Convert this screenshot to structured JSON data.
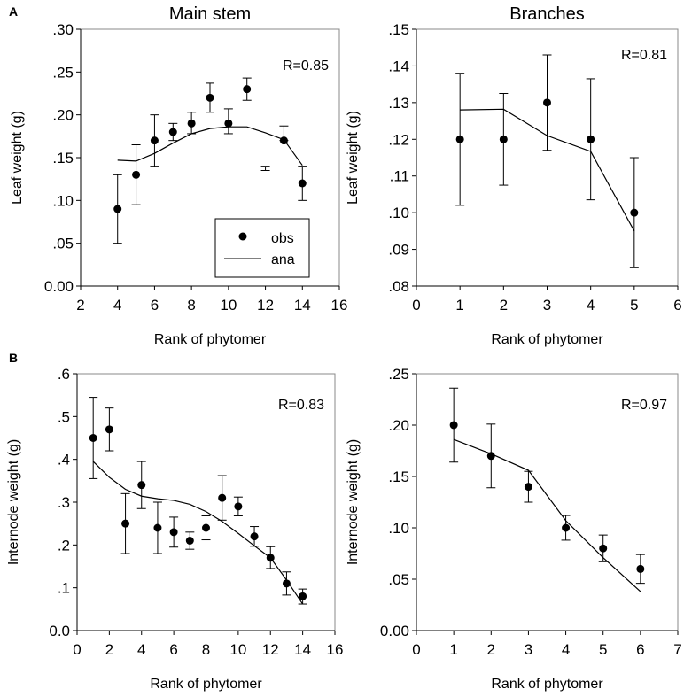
{
  "panel_labels": [
    "A",
    "B"
  ],
  "chart_data": [
    {
      "type": "scatter",
      "title": "Main stem",
      "xlabel": "Rank of phytomer",
      "ylabel": "Leaf weight (g)",
      "annotation": "R=0.85",
      "xlim": [
        2,
        16
      ],
      "ylim": [
        0,
        0.3
      ],
      "xticks": [
        2,
        4,
        6,
        8,
        10,
        12,
        14,
        16
      ],
      "xtick_labels": [
        "2",
        "4",
        "6",
        "8",
        "10",
        "12",
        "14",
        "16"
      ],
      "yticks": [
        0,
        0.05,
        0.1,
        0.15,
        0.2,
        0.25,
        0.3
      ],
      "ytick_labels": [
        "0.00",
        ".05",
        ".10",
        ".15",
        ".20",
        ".25",
        ".30"
      ],
      "legend": {
        "placement": "bottom-right",
        "entries": [
          "obs",
          "ana"
        ]
      },
      "obs": {
        "x": [
          4,
          5,
          6,
          7,
          8,
          9,
          10,
          11,
          12,
          13,
          14
        ],
        "y": [
          0.09,
          0.13,
          0.17,
          0.18,
          0.19,
          0.22,
          0.19,
          0.23,
          null,
          0.17,
          0.12
        ],
        "err_low": [
          0.05,
          0.095,
          0.14,
          0.17,
          0.178,
          0.203,
          0.178,
          0.217,
          0.135,
          0.17,
          0.1
        ],
        "err_high": [
          0.13,
          0.165,
          0.2,
          0.19,
          0.203,
          0.237,
          0.207,
          0.243,
          0.14,
          0.187,
          0.14
        ]
      },
      "ana": {
        "x": [
          4,
          5,
          6,
          7,
          8,
          9,
          10,
          11,
          12,
          13,
          14
        ],
        "y": [
          0.147,
          0.146,
          0.155,
          0.167,
          0.178,
          0.184,
          0.186,
          0.186,
          0.179,
          0.171,
          0.141
        ]
      }
    },
    {
      "type": "scatter",
      "title": "Branches",
      "xlabel": "Rank of phytomer",
      "ylabel": "Leaf weight (g)",
      "annotation": "R=0.81",
      "xlim": [
        0,
        6
      ],
      "ylim": [
        0.08,
        0.15
      ],
      "xticks": [
        0,
        1,
        2,
        3,
        4,
        5,
        6
      ],
      "xtick_labels": [
        "0",
        "1",
        "2",
        "3",
        "4",
        "5",
        "6"
      ],
      "yticks": [
        0.08,
        0.09,
        0.1,
        0.11,
        0.12,
        0.13,
        0.14,
        0.15
      ],
      "ytick_labels": [
        ".08",
        ".09",
        ".10",
        ".11",
        ".12",
        ".13",
        ".14",
        ".15"
      ],
      "obs": {
        "x": [
          1,
          2,
          3,
          4,
          5
        ],
        "y": [
          0.12,
          0.12,
          0.13,
          0.12,
          0.1
        ],
        "err_low": [
          0.102,
          0.1075,
          0.117,
          0.1035,
          0.085
        ],
        "err_high": [
          0.138,
          0.1325,
          0.143,
          0.1365,
          0.115
        ]
      },
      "ana": {
        "x": [
          1,
          2,
          3,
          4,
          5
        ],
        "y": [
          0.128,
          0.1282,
          0.121,
          0.1167,
          0.095
        ]
      }
    },
    {
      "type": "scatter",
      "title": "",
      "xlabel": "Rank of phytomer",
      "ylabel": "Internode weight (g)",
      "annotation": "R=0.83",
      "xlim": [
        0,
        16
      ],
      "ylim": [
        0,
        0.6
      ],
      "xticks": [
        0,
        2,
        4,
        6,
        8,
        10,
        12,
        14,
        16
      ],
      "xtick_labels": [
        "0",
        "2",
        "4",
        "6",
        "8",
        "10",
        "12",
        "14",
        "16"
      ],
      "yticks": [
        0,
        0.1,
        0.2,
        0.3,
        0.4,
        0.5,
        0.6
      ],
      "ytick_labels": [
        "0.0",
        ".1",
        ".2",
        ".3",
        ".4",
        ".5",
        ".6"
      ],
      "obs": {
        "x": [
          1,
          2,
          3,
          4,
          5,
          6,
          7,
          8,
          9,
          10,
          11,
          12,
          13,
          14
        ],
        "y": [
          0.45,
          0.47,
          0.25,
          0.34,
          0.24,
          0.23,
          0.21,
          0.24,
          0.31,
          0.29,
          0.22,
          0.17,
          0.11,
          0.08
        ],
        "err_low": [
          0.355,
          0.42,
          0.18,
          0.285,
          0.18,
          0.195,
          0.19,
          0.212,
          0.258,
          0.268,
          0.197,
          0.145,
          0.083,
          0.062
        ],
        "err_high": [
          0.545,
          0.52,
          0.32,
          0.395,
          0.3,
          0.265,
          0.23,
          0.268,
          0.362,
          0.312,
          0.243,
          0.196,
          0.137,
          0.097
        ]
      },
      "ana": {
        "x": [
          1,
          2,
          3,
          4,
          5,
          6,
          7,
          8,
          9,
          10,
          11,
          12,
          13,
          14
        ],
        "y": [
          0.395,
          0.358,
          0.33,
          0.314,
          0.308,
          0.304,
          0.295,
          0.278,
          0.255,
          0.227,
          0.198,
          0.17,
          0.118,
          0.062
        ]
      }
    },
    {
      "type": "scatter",
      "title": "",
      "xlabel": "Rank of phytomer",
      "ylabel": "Internode weight (g)",
      "annotation": "R=0.97",
      "xlim": [
        0,
        7
      ],
      "ylim": [
        0,
        0.25
      ],
      "xticks": [
        0,
        1,
        2,
        3,
        4,
        5,
        6,
        7
      ],
      "xtick_labels": [
        "0",
        "1",
        "2",
        "3",
        "4",
        "5",
        "6",
        "7"
      ],
      "yticks": [
        0,
        0.05,
        0.1,
        0.15,
        0.2,
        0.25
      ],
      "ytick_labels": [
        "0.00",
        ".05",
        ".10",
        ".15",
        ".20",
        ".25"
      ],
      "obs": {
        "x": [
          1,
          2,
          3,
          4,
          5,
          6
        ],
        "y": [
          0.2,
          0.17,
          0.14,
          0.1,
          0.08,
          0.06
        ],
        "err_low": [
          0.164,
          0.139,
          0.125,
          0.088,
          0.067,
          0.046
        ],
        "err_high": [
          0.236,
          0.201,
          0.155,
          0.112,
          0.093,
          0.074
        ]
      },
      "ana": {
        "x": [
          1,
          2,
          3,
          4,
          5,
          6
        ],
        "y": [
          0.186,
          0.172,
          0.156,
          0.107,
          0.071,
          0.038
        ]
      }
    }
  ]
}
